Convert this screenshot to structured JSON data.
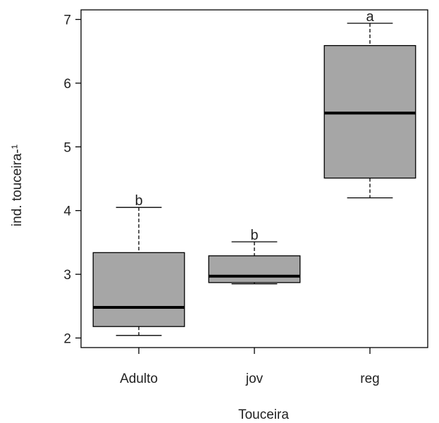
{
  "chart_data": {
    "type": "box",
    "xlabel": "Touceira",
    "ylabel": "ind. touceira-¹",
    "ylim": [
      1.85,
      7.15
    ],
    "yticks": [
      2,
      3,
      4,
      5,
      6,
      7
    ],
    "categories": [
      "Adulto",
      "jov",
      "reg"
    ],
    "boxes": [
      {
        "category": "Adulto",
        "min": 2.04,
        "q1": 2.18,
        "median": 2.48,
        "q3": 3.34,
        "max": 4.05,
        "letter": "b"
      },
      {
        "category": "jov",
        "min": 2.85,
        "q1": 2.87,
        "median": 2.97,
        "q3": 3.29,
        "max": 3.51,
        "letter": "b"
      },
      {
        "category": "reg",
        "min": 4.2,
        "q1": 4.51,
        "median": 5.53,
        "q3": 6.59,
        "max": 6.94,
        "letter": "a"
      }
    ],
    "box_fill": "#a6a6a6",
    "grid": false
  }
}
